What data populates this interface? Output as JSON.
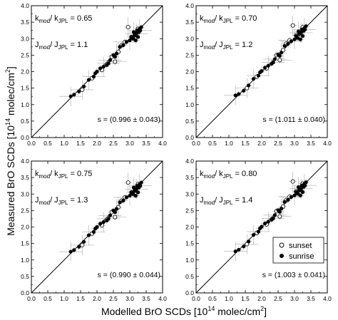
{
  "figure": {
    "ylabel_main": "Measured BrO SCDs [10",
    "ylabel_exp": "14",
    "ylabel_tail": " molec/cm",
    "ylabel_sq": "2",
    "ylabel_end": "]",
    "xlabel_main": "Modelled BrO SCDs [10",
    "xlabel_exp": "14",
    "xlabel_tail": " molec/cm",
    "xlabel_sq": "2",
    "xlabel_end": "]"
  },
  "legend": {
    "sunset": "sunset",
    "sunrise": "sunrise"
  },
  "ticks": [
    "0.0",
    "0.5",
    "1.0",
    "1.5",
    "2.0",
    "2.5",
    "3.0",
    "3.5",
    "4.0"
  ],
  "chart_data": [
    {
      "type": "scatter",
      "panel": "top-left",
      "k_label": "k",
      "k_sub1": "mod",
      "k_slash": "/ k",
      "k_sub2": "JPL",
      "k_value": "= 0.65",
      "j_label": "J",
      "j_sub1": "mod",
      "j_slash": "/ J",
      "j_sub2": "JPL",
      "j_value": "= 1.1",
      "slope_text": "s = (0.996 ± 0.043)",
      "xlim": [
        0,
        4
      ],
      "ylim": [
        0,
        4
      ],
      "series": [
        {
          "name": "sunset",
          "x": [
            1.55,
            1.85,
            2.15,
            2.45,
            2.65,
            2.85,
            3.05,
            3.15,
            2.95,
            2.75,
            2.55,
            3.25
          ],
          "y": [
            1.45,
            1.8,
            2.05,
            2.45,
            2.6,
            2.9,
            3.05,
            3.1,
            3.35,
            2.8,
            2.3,
            3.3
          ]
        },
        {
          "name": "sunrise",
          "x": [
            1.2,
            1.3,
            1.45,
            1.6,
            1.75,
            1.9,
            2.0,
            2.1,
            2.2,
            2.3,
            2.4,
            2.5,
            2.6,
            2.7,
            2.8,
            2.9,
            3.0,
            3.05,
            3.1,
            3.15,
            3.2,
            3.22,
            3.25,
            3.28,
            3.3,
            3.32,
            3.35,
            3.18,
            3.12,
            2.55,
            2.35,
            1.95
          ],
          "y": [
            1.25,
            1.3,
            1.4,
            1.55,
            1.75,
            1.85,
            2.0,
            2.1,
            2.15,
            2.2,
            2.35,
            2.5,
            2.55,
            2.75,
            2.8,
            2.9,
            2.95,
            3.05,
            3.0,
            3.1,
            3.15,
            3.25,
            3.05,
            3.2,
            3.3,
            3.25,
            3.35,
            2.95,
            3.2,
            2.45,
            2.25,
            1.95
          ]
        }
      ]
    },
    {
      "type": "scatter",
      "panel": "top-right",
      "k_label": "k",
      "k_sub1": "mod",
      "k_slash": "/ k",
      "k_sub2": "JPL",
      "k_value": "= 0.70",
      "j_label": "J",
      "j_sub1": "mod",
      "j_slash": "/ J",
      "j_sub2": "JPL",
      "j_value": "= 1.2",
      "slope_text": "s = (1.011 ± 0.040)",
      "xlim": [
        0,
        4
      ],
      "ylim": [
        0,
        4
      ],
      "series": [
        {
          "name": "sunset",
          "x": [
            1.55,
            1.85,
            2.15,
            2.45,
            2.65,
            2.85,
            3.05,
            3.15,
            2.95,
            2.75,
            2.55,
            3.25
          ],
          "y": [
            1.5,
            1.85,
            2.1,
            2.5,
            2.65,
            2.95,
            3.1,
            3.15,
            3.4,
            2.85,
            2.35,
            3.35
          ]
        },
        {
          "name": "sunrise",
          "x": [
            1.2,
            1.3,
            1.45,
            1.6,
            1.75,
            1.9,
            2.0,
            2.1,
            2.2,
            2.3,
            2.4,
            2.5,
            2.6,
            2.7,
            2.8,
            2.9,
            3.0,
            3.05,
            3.1,
            3.15,
            3.2,
            3.22,
            3.25,
            3.28,
            3.3,
            3.32,
            3.35,
            3.18,
            3.12,
            2.55,
            2.35,
            1.95
          ],
          "y": [
            1.28,
            1.32,
            1.42,
            1.58,
            1.78,
            1.88,
            2.02,
            2.12,
            2.18,
            2.24,
            2.38,
            2.52,
            2.58,
            2.78,
            2.84,
            2.92,
            2.98,
            3.08,
            3.02,
            3.14,
            3.18,
            3.28,
            3.08,
            3.24,
            3.32,
            3.28,
            3.38,
            2.98,
            3.22,
            2.48,
            2.28,
            1.98
          ]
        }
      ]
    },
    {
      "type": "scatter",
      "panel": "bottom-left",
      "k_label": "k",
      "k_sub1": "mod",
      "k_slash": "/ k",
      "k_sub2": "JPL",
      "k_value": "= 0.75",
      "j_label": "J",
      "j_sub1": "mod",
      "j_slash": "/ J",
      "j_sub2": "JPL",
      "j_value": "= 1.3",
      "slope_text": "s = (0.990 ± 0.044)",
      "xlim": [
        0,
        4
      ],
      "ylim": [
        0,
        4
      ],
      "series": [
        {
          "name": "sunset",
          "x": [
            1.55,
            1.85,
            2.15,
            2.45,
            2.65,
            2.85,
            3.05,
            3.15,
            2.95,
            2.75,
            2.55,
            3.25
          ],
          "y": [
            1.45,
            1.8,
            2.05,
            2.45,
            2.6,
            2.9,
            3.05,
            3.1,
            3.35,
            2.8,
            2.3,
            3.3
          ]
        },
        {
          "name": "sunrise",
          "x": [
            1.2,
            1.3,
            1.45,
            1.6,
            1.75,
            1.9,
            2.0,
            2.1,
            2.2,
            2.3,
            2.4,
            2.5,
            2.6,
            2.7,
            2.8,
            2.9,
            3.0,
            3.05,
            3.1,
            3.15,
            3.2,
            3.22,
            3.25,
            3.28,
            3.3,
            3.32,
            3.35,
            3.18,
            3.12,
            2.55,
            2.35,
            1.95
          ],
          "y": [
            1.25,
            1.3,
            1.4,
            1.55,
            1.75,
            1.85,
            2.0,
            2.1,
            2.15,
            2.2,
            2.35,
            2.5,
            2.55,
            2.75,
            2.8,
            2.9,
            2.95,
            3.05,
            3.0,
            3.1,
            3.15,
            3.25,
            3.05,
            3.2,
            3.3,
            3.25,
            3.35,
            2.95,
            3.2,
            2.45,
            2.25,
            1.95
          ]
        }
      ]
    },
    {
      "type": "scatter",
      "panel": "bottom-right",
      "k_label": "k",
      "k_sub1": "mod",
      "k_slash": "/ k",
      "k_sub2": "JPL",
      "k_value": "= 0.80",
      "j_label": "J",
      "j_sub1": "mod",
      "j_slash": "/ J",
      "j_sub2": "JPL",
      "j_value": "= 1.4",
      "slope_text": "s = (1.003 ± 0.041)",
      "xlim": [
        0,
        4
      ],
      "ylim": [
        0,
        4
      ],
      "series": [
        {
          "name": "sunset",
          "x": [
            1.55,
            1.85,
            2.15,
            2.45,
            2.65,
            2.85,
            3.05,
            3.15,
            2.95,
            2.75,
            2.55,
            3.25
          ],
          "y": [
            1.48,
            1.82,
            2.08,
            2.48,
            2.62,
            2.92,
            3.08,
            3.12,
            3.38,
            2.82,
            2.32,
            3.32
          ]
        },
        {
          "name": "sunrise",
          "x": [
            1.2,
            1.3,
            1.45,
            1.6,
            1.75,
            1.9,
            2.0,
            2.1,
            2.2,
            2.3,
            2.4,
            2.5,
            2.6,
            2.7,
            2.8,
            2.9,
            3.0,
            3.05,
            3.1,
            3.15,
            3.2,
            3.22,
            3.25,
            3.28,
            3.3,
            3.32,
            3.35,
            3.18,
            3.12,
            2.55,
            2.35,
            1.95
          ],
          "y": [
            1.26,
            1.31,
            1.41,
            1.56,
            1.76,
            1.86,
            2.01,
            2.11,
            2.16,
            2.22,
            2.36,
            2.51,
            2.56,
            2.76,
            2.82,
            2.91,
            2.96,
            3.06,
            3.01,
            3.12,
            3.16,
            3.26,
            3.06,
            3.22,
            3.31,
            3.26,
            3.36,
            2.96,
            3.21,
            2.46,
            2.26,
            1.96
          ]
        }
      ]
    }
  ]
}
